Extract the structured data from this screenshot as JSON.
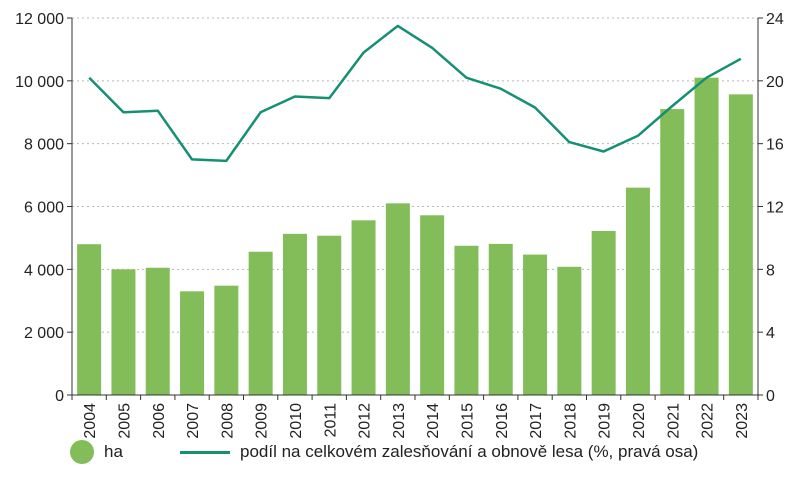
{
  "chart_data": {
    "type": "bar",
    "categories": [
      "2004",
      "2005",
      "2006",
      "2007",
      "2008",
      "2009",
      "2010",
      "2011",
      "2012",
      "2013",
      "2014",
      "2015",
      "2016",
      "2017",
      "2018",
      "2019",
      "2020",
      "2021",
      "2022",
      "2023"
    ],
    "series": [
      {
        "name": "ha",
        "type": "bar",
        "axis": "left",
        "color": "#82bd5a",
        "values": [
          4800,
          4000,
          4050,
          3300,
          3480,
          4560,
          5130,
          5070,
          5560,
          6100,
          5720,
          4750,
          4810,
          4470,
          4080,
          5220,
          6600,
          9100,
          10100,
          9570
        ]
      },
      {
        "name": "podíl na celkovém zalesňování a obnově lesa (%, pravá osa)",
        "type": "line",
        "axis": "right",
        "color": "#159072",
        "values": [
          20.2,
          18.0,
          18.1,
          15.0,
          14.9,
          18.0,
          19.0,
          18.9,
          21.8,
          23.5,
          22.1,
          20.2,
          19.5,
          18.3,
          16.1,
          15.5,
          16.5,
          18.4,
          20.2,
          21.4
        ]
      }
    ],
    "ylim": [
      0,
      12000
    ],
    "y2lim": [
      0,
      24
    ],
    "yticks": [
      "0",
      "2 000",
      "4 000",
      "6 000",
      "8 000",
      "10 000",
      "12 000"
    ],
    "y2ticks": [
      "0",
      "4",
      "8",
      "12",
      "16",
      "20",
      "24"
    ],
    "grid": true,
    "legend_position": "bottom"
  },
  "legend": {
    "bar_label": "ha",
    "line_label": "podíl na celkovém zalesňování a obnově lesa (%, pravá osa)"
  }
}
